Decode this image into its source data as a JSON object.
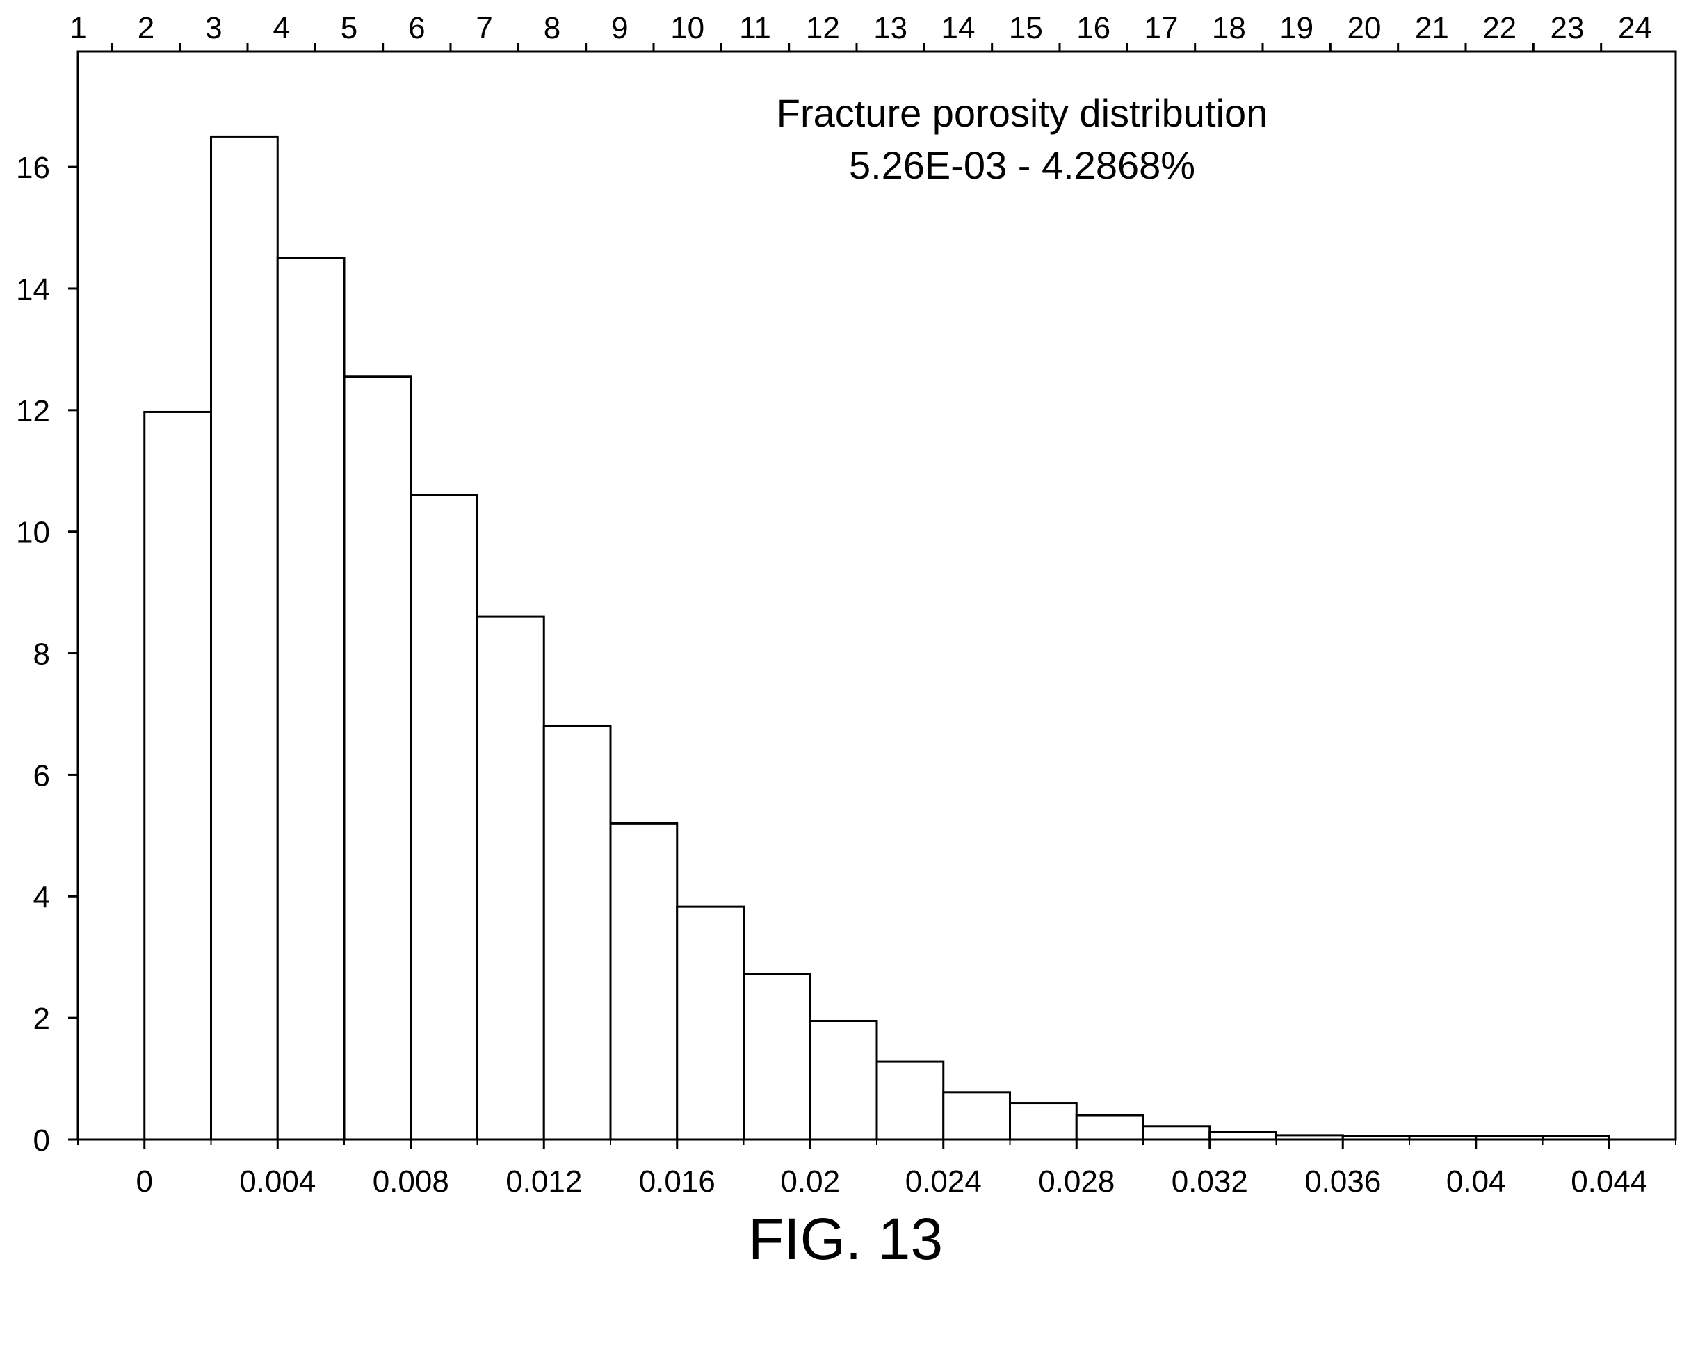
{
  "figure_caption": "FIG. 13",
  "chart_data": {
    "type": "bar",
    "title": "Fracture porosity distribution",
    "subtitle": "5.26E-03 - 4.2868%",
    "xlabel": "",
    "ylabel": "",
    "bin_width": 0.002,
    "bin_starts": [
      0,
      0.002,
      0.004,
      0.006,
      0.008,
      0.01,
      0.012,
      0.014,
      0.016,
      0.018,
      0.02,
      0.022,
      0.024,
      0.026,
      0.028,
      0.03,
      0.032,
      0.034,
      0.036,
      0.038,
      0.04,
      0.042
    ],
    "values": [
      11.97,
      16.5,
      14.5,
      12.55,
      10.6,
      8.6,
      6.8,
      5.2,
      3.83,
      2.72,
      1.95,
      1.28,
      0.78,
      0.6,
      0.4,
      0.22,
      0.12,
      0.07,
      0.06,
      0.06,
      0.06,
      0.06
    ],
    "xlim": [
      -0.002,
      0.046
    ],
    "ylim": [
      0,
      17.9
    ],
    "x_ticks": [
      0,
      0.004,
      0.008,
      0.012,
      0.016,
      0.02,
      0.024,
      0.028,
      0.032,
      0.036,
      0.04,
      0.044
    ],
    "x_tick_labels": [
      "0",
      "0.004",
      "0.008",
      "0.012",
      "0.016",
      "0.02",
      "0.024",
      "0.028",
      "0.032",
      "0.036",
      "0.04",
      "0.044"
    ],
    "y_ticks": [
      0,
      2,
      4,
      6,
      8,
      10,
      12,
      14,
      16
    ],
    "y_tick_labels": [
      "0",
      "2",
      "4",
      "6",
      "8",
      "10",
      "12",
      "14",
      "16"
    ],
    "top_axis_labels": [
      "1",
      "2",
      "3",
      "4",
      "5",
      "6",
      "7",
      "8",
      "9",
      "10",
      "11",
      "12",
      "13",
      "14",
      "15",
      "16",
      "17",
      "18",
      "19",
      "20",
      "21",
      "22",
      "23",
      "24"
    ],
    "grid": false,
    "bar_fill": "#ffffff",
    "bar_stroke": "#000000"
  }
}
